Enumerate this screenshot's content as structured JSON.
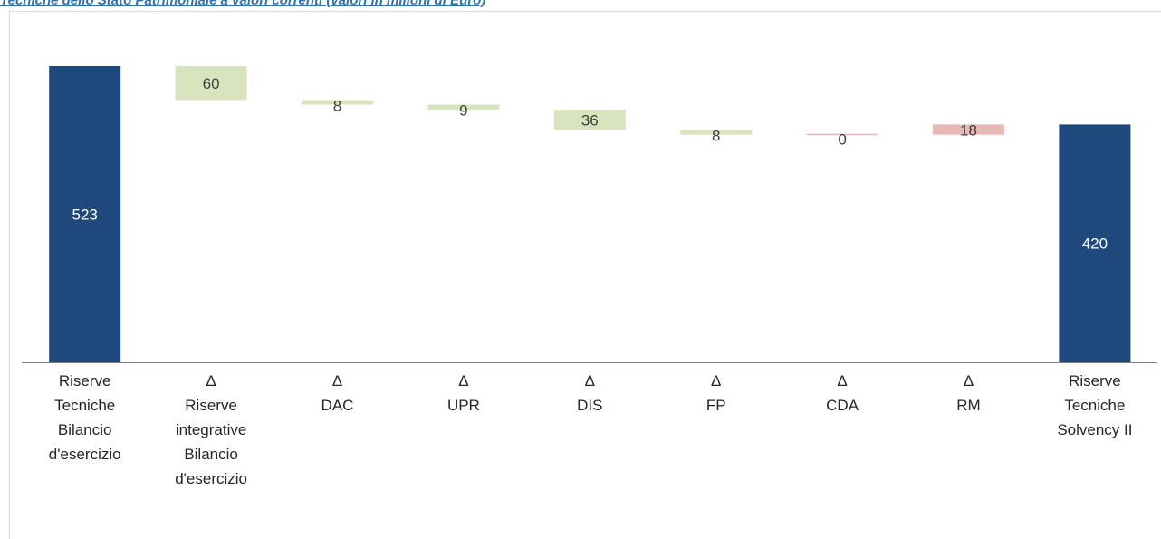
{
  "page": {
    "title": "Tecniche dello Stato Patrimoniale a valori correnti (valori in milioni di Euro)"
  },
  "colors": {
    "total": "#1f497d",
    "increase": "#d7e4bd",
    "decrease": "#e6b9b8",
    "total_text": "#ffffff",
    "delta_text": "#404040",
    "axis": "#808080"
  },
  "chart_data": {
    "type": "bar",
    "subtype": "waterfall",
    "title": "Tecniche dello Stato Patrimoniale a valori correnti (valori in milioni di Euro)",
    "xlabel": "",
    "ylabel": "",
    "ylim": [
      0,
      580
    ],
    "grid": false,
    "legend": "none",
    "categories": [
      [
        "Riserve",
        "Tecniche",
        "Bilancio",
        "d'esercizio"
      ],
      [
        "Δ",
        "Riserve",
        "integrative",
        "Bilancio",
        "d'esercizio"
      ],
      [
        "Δ",
        "DAC"
      ],
      [
        "Δ",
        "UPR"
      ],
      [
        "Δ",
        "DIS"
      ],
      [
        "Δ",
        "FP"
      ],
      [
        "Δ",
        "CDA"
      ],
      [
        "Δ",
        "RM"
      ],
      [
        "Riserve",
        "Tecniche",
        "Solvency II"
      ]
    ],
    "bars": [
      {
        "kind": "total",
        "start": 0,
        "end": 523,
        "label": "523"
      },
      {
        "kind": "delta",
        "start": 523,
        "end": 463,
        "label": "60"
      },
      {
        "kind": "delta",
        "start": 463,
        "end": 455,
        "label": "8"
      },
      {
        "kind": "delta",
        "start": 455,
        "end": 446,
        "label": "9"
      },
      {
        "kind": "delta",
        "start": 446,
        "end": 410,
        "label": "36"
      },
      {
        "kind": "delta",
        "start": 410,
        "end": 402,
        "label": "8"
      },
      {
        "kind": "delta",
        "start": 402,
        "end": 402,
        "label": "0"
      },
      {
        "kind": "delta",
        "start": 402,
        "end": 420,
        "label": "18"
      },
      {
        "kind": "total",
        "start": 0,
        "end": 420,
        "label": "420"
      }
    ]
  }
}
